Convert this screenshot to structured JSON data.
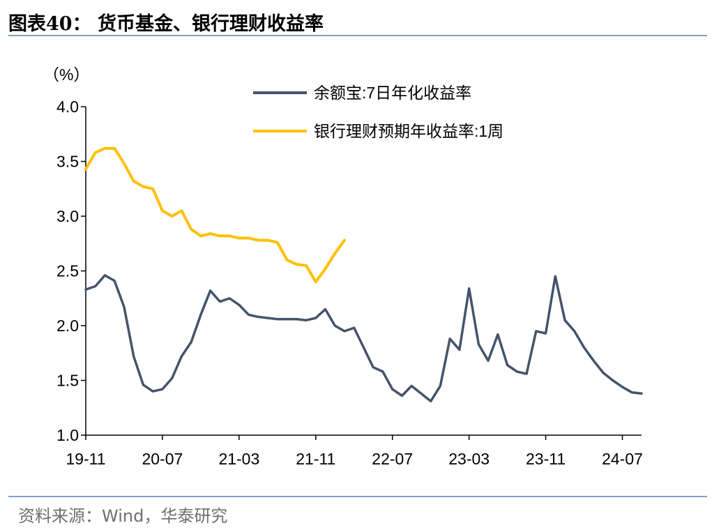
{
  "header": {
    "title": "图表40：  货币基金、银行理财收益率"
  },
  "footer": {
    "source": "资料来源：Wind，华泰研究"
  },
  "colors": {
    "series1": "#44546a",
    "series2": "#ffc000",
    "rule": "#7f9fc6",
    "axis": "#000000"
  },
  "chart_data": {
    "type": "line",
    "ylabel": "（%）",
    "ylim": [
      1.0,
      4.0
    ],
    "yticks": [
      "1.0",
      "1.5",
      "2.0",
      "2.5",
      "3.0",
      "3.5",
      "4.0"
    ],
    "xlim": [
      "2019-11",
      "2024-09"
    ],
    "xticks": [
      {
        "label": "19-11",
        "month": "2019-11"
      },
      {
        "label": "20-07",
        "month": "2020-07"
      },
      {
        "label": "21-03",
        "month": "2021-03"
      },
      {
        "label": "21-11",
        "month": "2021-11"
      },
      {
        "label": "22-07",
        "month": "2022-07"
      },
      {
        "label": "23-03",
        "month": "2023-03"
      },
      {
        "label": "23-11",
        "month": "2023-11"
      },
      {
        "label": "24-07",
        "month": "2024-07"
      }
    ],
    "legend_position": "top-right",
    "grid": false,
    "series": [
      {
        "name": "余额宝:7日年化收益率",
        "color": "#44546a",
        "points": [
          [
            "2019-11",
            2.33
          ],
          [
            "2019-12",
            2.36
          ],
          [
            "2020-01",
            2.46
          ],
          [
            "2020-02",
            2.41
          ],
          [
            "2020-03",
            2.17
          ],
          [
            "2020-04",
            1.72
          ],
          [
            "2020-05",
            1.46
          ],
          [
            "2020-06",
            1.4
          ],
          [
            "2020-07",
            1.42
          ],
          [
            "2020-08",
            1.52
          ],
          [
            "2020-09",
            1.72
          ],
          [
            "2020-10",
            1.85
          ],
          [
            "2020-11",
            2.1
          ],
          [
            "2020-12",
            2.32
          ],
          [
            "2021-01",
            2.22
          ],
          [
            "2021-02",
            2.25
          ],
          [
            "2021-03",
            2.19
          ],
          [
            "2021-04",
            2.1
          ],
          [
            "2021-05",
            2.08
          ],
          [
            "2021-06",
            2.07
          ],
          [
            "2021-07",
            2.06
          ],
          [
            "2021-08",
            2.06
          ],
          [
            "2021-09",
            2.06
          ],
          [
            "2021-10",
            2.05
          ],
          [
            "2021-11",
            2.07
          ],
          [
            "2021-12",
            2.15
          ],
          [
            "2022-01",
            2.0
          ],
          [
            "2022-02",
            1.95
          ],
          [
            "2022-03",
            1.98
          ],
          [
            "2022-04",
            1.8
          ],
          [
            "2022-05",
            1.62
          ],
          [
            "2022-06",
            1.58
          ],
          [
            "2022-07",
            1.42
          ],
          [
            "2022-08",
            1.36
          ],
          [
            "2022-09",
            1.45
          ],
          [
            "2022-10",
            1.38
          ],
          [
            "2022-11",
            1.31
          ],
          [
            "2022-12",
            1.45
          ],
          [
            "2023-01",
            1.88
          ],
          [
            "2023-02",
            1.78
          ],
          [
            "2023-03",
            2.34
          ],
          [
            "2023-04",
            1.83
          ],
          [
            "2023-05",
            1.68
          ],
          [
            "2023-06",
            1.92
          ],
          [
            "2023-07",
            1.64
          ],
          [
            "2023-08",
            1.58
          ],
          [
            "2023-09",
            1.56
          ],
          [
            "2023-10",
            1.95
          ],
          [
            "2023-11",
            1.93
          ],
          [
            "2023-12",
            2.45
          ],
          [
            "2024-01",
            2.05
          ],
          [
            "2024-02",
            1.95
          ],
          [
            "2024-03",
            1.8
          ],
          [
            "2024-04",
            1.68
          ],
          [
            "2024-05",
            1.57
          ],
          [
            "2024-06",
            1.5
          ],
          [
            "2024-07",
            1.44
          ],
          [
            "2024-08",
            1.39
          ],
          [
            "2024-09",
            1.38
          ]
        ]
      },
      {
        "name": "银行理财预期年收益率:1周",
        "color": "#ffc000",
        "points": [
          [
            "2019-11",
            3.43
          ],
          [
            "2019-12",
            3.58
          ],
          [
            "2020-01",
            3.62
          ],
          [
            "2020-02",
            3.62
          ],
          [
            "2020-03",
            3.48
          ],
          [
            "2020-04",
            3.32
          ],
          [
            "2020-05",
            3.27
          ],
          [
            "2020-06",
            3.25
          ],
          [
            "2020-07",
            3.05
          ],
          [
            "2020-08",
            3.0
          ],
          [
            "2020-09",
            3.05
          ],
          [
            "2020-10",
            2.88
          ],
          [
            "2020-11",
            2.82
          ],
          [
            "2020-12",
            2.84
          ],
          [
            "2021-01",
            2.82
          ],
          [
            "2021-02",
            2.82
          ],
          [
            "2021-03",
            2.8
          ],
          [
            "2021-04",
            2.8
          ],
          [
            "2021-05",
            2.78
          ],
          [
            "2021-06",
            2.78
          ],
          [
            "2021-07",
            2.76
          ],
          [
            "2021-08",
            2.6
          ],
          [
            "2021-09",
            2.56
          ],
          [
            "2021-10",
            2.55
          ],
          [
            "2021-11",
            2.4
          ],
          [
            "2021-12",
            2.52
          ],
          [
            "2022-01",
            2.66
          ],
          [
            "2022-02",
            2.78
          ]
        ]
      }
    ]
  }
}
